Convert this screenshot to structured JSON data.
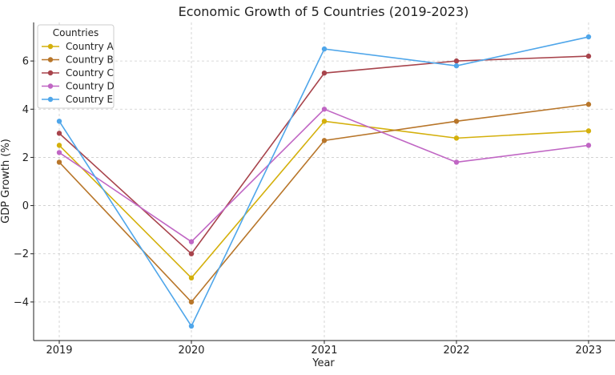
{
  "chart_data": {
    "type": "line",
    "title": "Economic Growth of 5 Countries (2019-2023)",
    "xlabel": "Year",
    "ylabel": "GDP Growth (%)",
    "x": [
      "2019",
      "2020",
      "2021",
      "2022",
      "2023"
    ],
    "ylim": [
      -5.6,
      7.6
    ],
    "yticks": [
      -4,
      -2,
      0,
      2,
      4,
      6
    ],
    "grid": true,
    "legend": {
      "title": "Countries",
      "placement": "top-left"
    },
    "series": [
      {
        "name": "Country A",
        "color": "#d4b00c",
        "values": [
          2.5,
          -3.0,
          3.5,
          2.8,
          3.1
        ]
      },
      {
        "name": "Country B",
        "color": "#b8762a",
        "values": [
          1.8,
          -4.0,
          2.7,
          3.5,
          4.2
        ]
      },
      {
        "name": "Country C",
        "color": "#a8444c",
        "values": [
          3.0,
          -2.0,
          5.5,
          6.0,
          6.2
        ]
      },
      {
        "name": "Country D",
        "color": "#c066c4",
        "values": [
          2.2,
          -1.5,
          4.0,
          1.8,
          2.5
        ]
      },
      {
        "name": "Country E",
        "color": "#4fa6ea",
        "values": [
          3.5,
          -5.0,
          6.5,
          5.8,
          7.0
        ]
      }
    ]
  }
}
